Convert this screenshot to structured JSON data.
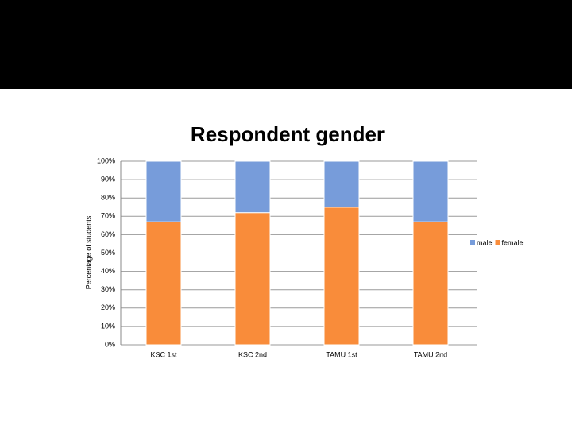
{
  "chart_data": {
    "type": "stacked-bar",
    "title": "Respondent gender",
    "y_label": "Percentage of students",
    "categories": [
      "KSC 1st",
      "KSC 2nd",
      "TAMU 1st",
      "TAMU 2nd"
    ],
    "series": [
      {
        "name": "male",
        "color": "#779cda",
        "values": [
          33,
          28,
          25,
          33
        ]
      },
      {
        "name": "female",
        "color": "#f98c3a",
        "values": [
          67,
          72,
          75,
          67
        ]
      }
    ],
    "ylim": [
      0,
      100
    ],
    "yticks": [
      {
        "value": 0,
        "label": "0%"
      },
      {
        "value": 10,
        "label": "10%"
      },
      {
        "value": 20,
        "label": "20%"
      },
      {
        "value": 30,
        "label": "30%"
      },
      {
        "value": 40,
        "label": "40%"
      },
      {
        "value": 50,
        "label": "50%"
      },
      {
        "value": 60,
        "label": "60%"
      },
      {
        "value": 70,
        "label": "70%"
      },
      {
        "value": 80,
        "label": "80%"
      },
      {
        "value": 90,
        "label": "90%"
      },
      {
        "value": 100,
        "label": "100%"
      }
    ],
    "grid": true,
    "legend": "right"
  }
}
